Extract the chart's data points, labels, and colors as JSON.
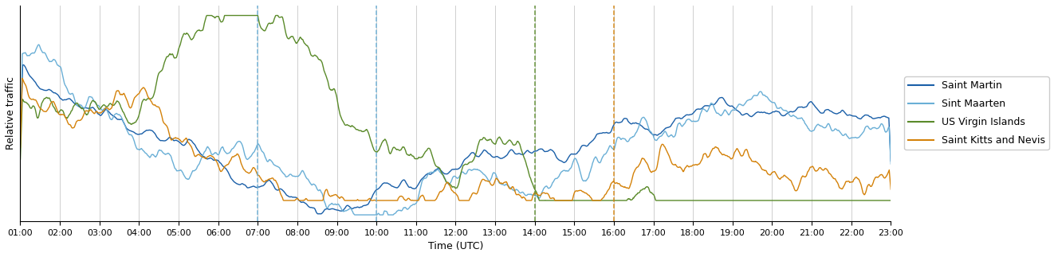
{
  "xlabel": "Time (UTC)",
  "ylabel": "Relative traffic",
  "line_colors": {
    "saint_martin": "#1a5fa8",
    "sint_maarten": "#6aafd6",
    "us_virgin_islands": "#5a8a2a",
    "saint_kitts": "#d4820a"
  },
  "legend_labels": [
    "Saint Martin",
    "Sint Maarten",
    "US Virgin Islands",
    "Saint Kitts and Nevis"
  ],
  "vlines": [
    {
      "x": 7.0,
      "color": "#6aafd6",
      "linestyle": "dashed"
    },
    {
      "x": 10.0,
      "color": "#6aafd6",
      "linestyle": "dashed"
    },
    {
      "x": 14.0,
      "color": "#5a8a2a",
      "linestyle": "dashed"
    },
    {
      "x": 16.0,
      "color": "#d4820a",
      "linestyle": "dashed"
    }
  ],
  "grid_color": "#b0b0b0",
  "background_color": "#ffffff",
  "figsize": [
    13.22,
    3.23
  ],
  "dpi": 100
}
